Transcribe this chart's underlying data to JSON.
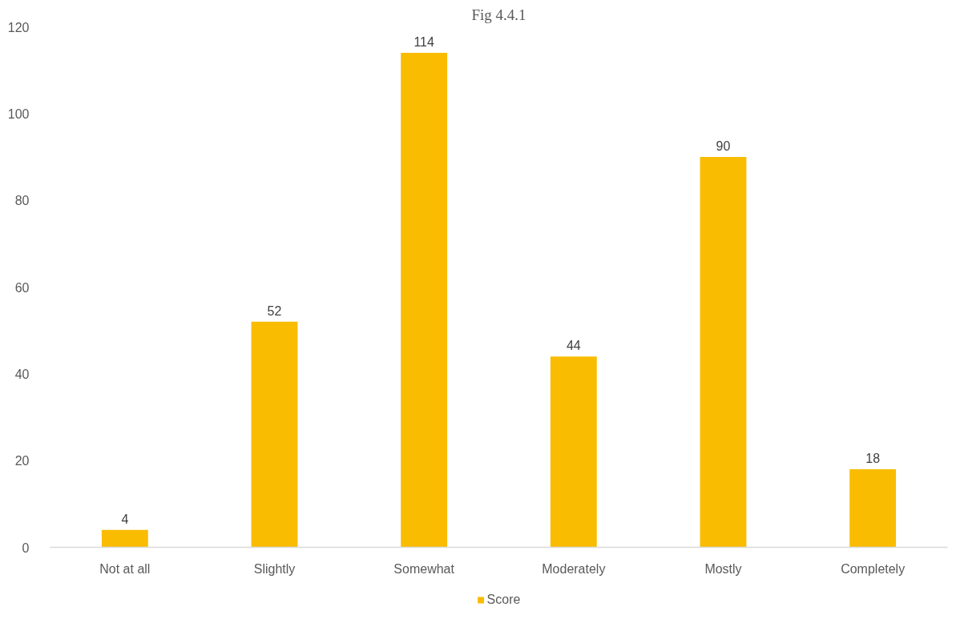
{
  "chart_data": {
    "type": "bar",
    "title": "Fig 4.4.1",
    "categories": [
      "Not at all",
      "Slightly",
      "Somewhat",
      "Moderately",
      "Mostly",
      "Completely"
    ],
    "series": [
      {
        "name": "Score",
        "color": "#f9bc00",
        "values": [
          4,
          52,
          114,
          44,
          90,
          18
        ]
      }
    ],
    "ylim": [
      0,
      120
    ],
    "yticks": [
      0,
      20,
      40,
      60,
      80,
      100,
      120
    ],
    "data_labels": true,
    "legend": "bottom"
  }
}
